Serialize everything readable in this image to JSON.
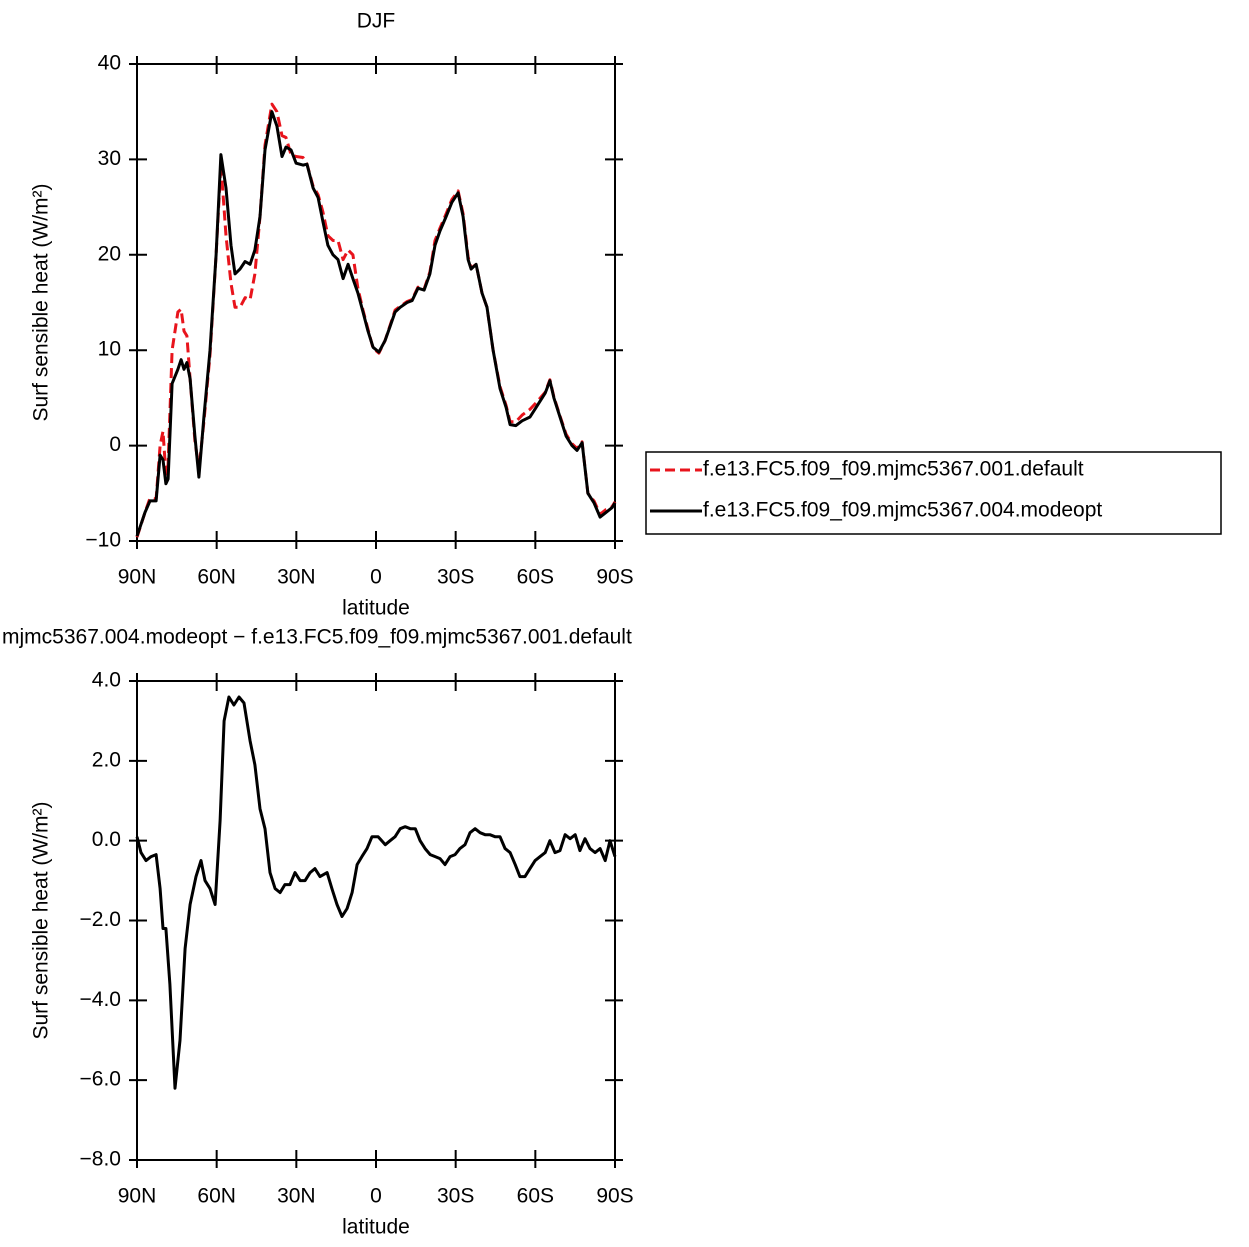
{
  "chart_data": [
    {
      "type": "line",
      "title": "DJF",
      "xlabel": "latitude",
      "ylabel": "Surf sensible heat (W/m²)",
      "xlim": [
        90,
        -90
      ],
      "ylim": [
        -10,
        40
      ],
      "xticks": [
        {
          "value": 90,
          "label": "90N"
        },
        {
          "value": 60,
          "label": "60N"
        },
        {
          "value": 30,
          "label": "30N"
        },
        0,
        {
          "value": -30,
          "label": "30S"
        },
        {
          "value": -60,
          "label": "60S"
        },
        {
          "value": -90,
          "label": "90S"
        }
      ],
      "yticks": [
        {
          "value": -10,
          "label": "−10"
        },
        0,
        10,
        20,
        30,
        40
      ],
      "x": [
        90,
        87.0,
        85.1,
        82.8,
        81.3,
        80.2,
        79.1,
        78.3,
        76.8,
        74.6,
        73.4,
        72.3,
        71.2,
        70.0,
        68.2,
        66.7,
        64.8,
        62.5,
        60.2,
        58.4,
        56.5,
        54.6,
        53.1,
        51.2,
        49.3,
        47.4,
        45.6,
        43.7,
        41.8,
        39.2,
        37.3,
        35.4,
        33.9,
        32.0,
        30.1,
        27.5,
        26.0,
        23.7,
        21.8,
        20.0,
        18.1,
        16.2,
        14.3,
        12.4,
        10.5,
        8.7,
        6.8,
        4.9,
        3.0,
        1.1,
        -1.1,
        -3.4,
        -5.3,
        -7.2,
        -9.1,
        -11.7,
        -13.6,
        -15.8,
        -18.1,
        -20.3,
        -22.2,
        -24.1,
        -26.4,
        -28.6,
        -30.9,
        -32.8,
        -34.7,
        -35.8,
        -37.7,
        -39.9,
        -41.8,
        -44.1,
        -46.7,
        -49.0,
        -50.5,
        -52.7,
        -55.0,
        -58.0,
        -60.3,
        -63.7,
        -65.5,
        -67.0,
        -69.3,
        -71.6,
        -73.8,
        -75.7,
        -77.6,
        -79.8,
        -82.1,
        -84.4,
        -86.6,
        -88.9,
        -90
      ],
      "series": [
        {
          "name": "f.e13.FC5.f09_f09.mjmc5367.001.default",
          "color": "#e8141c",
          "dashed": true,
          "values": [
            -9.6,
            -7,
            -5.5,
            -5.6,
            0,
            1.5,
            -3,
            -2,
            10,
            14,
            14.3,
            12,
            11.5,
            7,
            0.5,
            -2.5,
            2.5,
            9.5,
            20,
            29.5,
            22,
            17,
            14.5,
            14.5,
            15.5,
            15.3,
            18,
            24,
            31.5,
            35.8,
            35,
            32.5,
            32.3,
            30.5,
            30.3,
            30.2,
            29.5,
            27.2,
            26.3,
            24.5,
            22,
            21.5,
            21.5,
            19.5,
            20.5,
            20,
            16.5,
            14.2,
            12.2,
            10.2,
            9.7,
            11,
            12.6,
            14.2,
            14.6,
            15.1,
            15.3,
            16.6,
            16.4,
            18.2,
            21.5,
            22.8,
            24.3,
            25.8,
            26.7,
            24.3,
            19.8,
            18.6,
            19,
            16,
            14.5,
            10,
            6.2,
            4.2,
            2.5,
            2.5,
            3.2,
            3.8,
            4.5,
            5.6,
            6.9,
            5.1,
            3.1,
            1.2,
            0.2,
            -0.3,
            0.4,
            -5,
            -5.8,
            -7.2,
            -6.7,
            -6.4,
            -5.9
          ]
        },
        {
          "name": "f.e13.FC5.f09_f09.mjmc5367.004.modeopt",
          "color": "#000000",
          "dashed": false,
          "values": [
            -9.5,
            -7,
            -5.8,
            -5.8,
            -1,
            -1.5,
            -4,
            -3.5,
            6.5,
            8,
            9,
            8,
            8.7,
            7,
            1,
            -3.3,
            3,
            10,
            20,
            30.5,
            27,
            21,
            18,
            18.5,
            19.3,
            19,
            20.5,
            24,
            31,
            35,
            33.5,
            30.3,
            31.3,
            31,
            29.6,
            29.4,
            29.5,
            27,
            26,
            23.5,
            21,
            20,
            19.5,
            17.5,
            19,
            17.5,
            16,
            14,
            12,
            10.3,
            9.8,
            11,
            12.5,
            14,
            14.5,
            15,
            15.2,
            16.5,
            16.3,
            18,
            21,
            22.5,
            24,
            25.5,
            26.5,
            24,
            19.5,
            18.5,
            19,
            16,
            14.5,
            10,
            6,
            4,
            2.2,
            2.1,
            2.6,
            3,
            4,
            5.5,
            6.8,
            5,
            3,
            1,
            0,
            -0.5,
            0.3,
            -5,
            -6,
            -7.5,
            -7,
            -6.5,
            -6
          ]
        }
      ]
    },
    {
      "type": "line",
      "title": "mjmc5367.004.modeopt − f.e13.FC5.f09_f09.mjmc5367.001.default",
      "xlabel": "latitude",
      "ylabel": "Surf sensible heat (W/m²)",
      "xlim": [
        90,
        -90
      ],
      "ylim": [
        -8,
        4
      ],
      "xticks": [
        {
          "value": 90,
          "label": "90N"
        },
        {
          "value": 60,
          "label": "60N"
        },
        {
          "value": 30,
          "label": "30N"
        },
        0,
        {
          "value": -30,
          "label": "30S"
        },
        {
          "value": -60,
          "label": "60S"
        },
        {
          "value": -90,
          "label": "90S"
        }
      ],
      "yticks": [
        {
          "value": -8,
          "label": "−8.0"
        },
        {
          "value": -6,
          "label": "−6.0"
        },
        {
          "value": -4,
          "label": "−4.0"
        },
        {
          "value": -2,
          "label": "−2.0"
        },
        {
          "value": 0,
          "label": "0.0"
        },
        {
          "value": 2,
          "label": "2.0"
        },
        {
          "value": 4,
          "label": "4.0"
        }
      ],
      "color": "#000000",
      "x": [
        90,
        88.5,
        86.6,
        84.7,
        82.8,
        81.3,
        80.2,
        79.1,
        77.6,
        75.7,
        73.8,
        71.9,
        70.0,
        67.8,
        65.9,
        64.4,
        62.5,
        60.6,
        58.7,
        57.2,
        55.4,
        53.5,
        51.6,
        49.7,
        47.4,
        45.6,
        43.7,
        41.8,
        39.9,
        38.0,
        36.1,
        34.3,
        32.4,
        30.5,
        28.6,
        26.7,
        24.8,
        23.0,
        21.1,
        18.4,
        16.6,
        14.7,
        12.8,
        10.9,
        9.0,
        7.1,
        5.3,
        3.4,
        1.5,
        -0.8,
        -3.5,
        -5.3,
        -7.2,
        -9.1,
        -11.0,
        -12.9,
        -14.8,
        -16.6,
        -18.5,
        -20.4,
        -22.3,
        -24.1,
        -26.0,
        -27.9,
        -29.8,
        -31.6,
        -33.5,
        -35.4,
        -37.3,
        -39.2,
        -41.1,
        -42.9,
        -44.8,
        -46.7,
        -48.6,
        -50.5,
        -52.4,
        -54.2,
        -56.1,
        -58.0,
        -59.9,
        -61.8,
        -63.7,
        -65.5,
        -67.4,
        -69.3,
        -71.2,
        -73.1,
        -75.0,
        -76.8,
        -78.7,
        -80.6,
        -82.5,
        -84.4,
        -86.3,
        -88.1,
        -90
      ],
      "values": [
        0.1,
        -0.3,
        -0.5,
        -0.4,
        -0.35,
        -1.2,
        -2.2,
        -2.2,
        -3.6,
        -6.2,
        -5,
        -2.7,
        -1.6,
        -0.9,
        -0.5,
        -1,
        -1.2,
        -1.6,
        0.5,
        3,
        3.6,
        3.4,
        3.6,
        3.45,
        2.5,
        1.9,
        0.8,
        0.3,
        -0.8,
        -1.2,
        -1.3,
        -1.1,
        -1.1,
        -0.8,
        -1.0,
        -1.0,
        -0.8,
        -0.7,
        -0.9,
        -0.8,
        -1.2,
        -1.6,
        -1.9,
        -1.7,
        -1.3,
        -0.6,
        -0.4,
        -0.2,
        0.1,
        0.1,
        -0.1,
        0.0,
        0.1,
        0.3,
        0.35,
        0.3,
        0.3,
        0.0,
        -0.2,
        -0.35,
        -0.4,
        -0.45,
        -0.6,
        -0.4,
        -0.35,
        -0.2,
        -0.1,
        0.2,
        0.3,
        0.2,
        0.15,
        0.15,
        0.1,
        0.1,
        -0.2,
        -0.3,
        -0.6,
        -0.9,
        -0.9,
        -0.7,
        -0.5,
        -0.4,
        -0.3,
        0.0,
        -0.3,
        -0.25,
        0.15,
        0.05,
        0.15,
        -0.25,
        0.05,
        -0.2,
        -0.3,
        -0.2,
        -0.5,
        0.0,
        -0.4
      ]
    }
  ]
}
